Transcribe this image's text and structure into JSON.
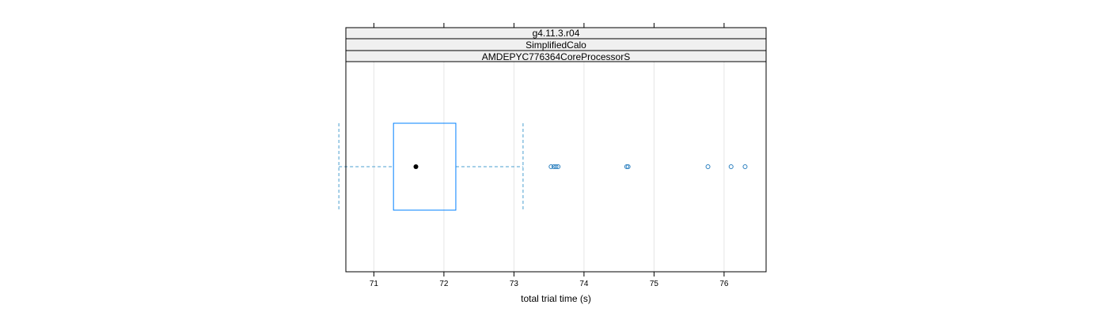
{
  "chart_data": {
    "type": "boxplot",
    "strips": [
      "g4.11.3.r04",
      "SimplifiedCalo",
      "AMDEPYC776364CoreProcessorS"
    ],
    "xlabel": "total trial time (s)",
    "xlim": [
      70.6,
      76.6
    ],
    "xticks": [
      71,
      72,
      73,
      74,
      75,
      76
    ],
    "grid": true,
    "box": {
      "whisker_low": 70.5,
      "q1": 71.28,
      "median": 71.6,
      "q3": 72.17,
      "whisker_high": 73.13
    },
    "outliers": [
      73.53,
      73.57,
      73.6,
      73.63,
      74.61,
      74.63,
      75.77,
      76.1,
      76.3
    ],
    "colors": {
      "box": "#0080ff",
      "whisker": "#4a9fd0",
      "median": "#000000",
      "outlier": "#2a7fbf",
      "strip_bg": "#f0f0f0",
      "grid": "#e6e6e6"
    }
  }
}
